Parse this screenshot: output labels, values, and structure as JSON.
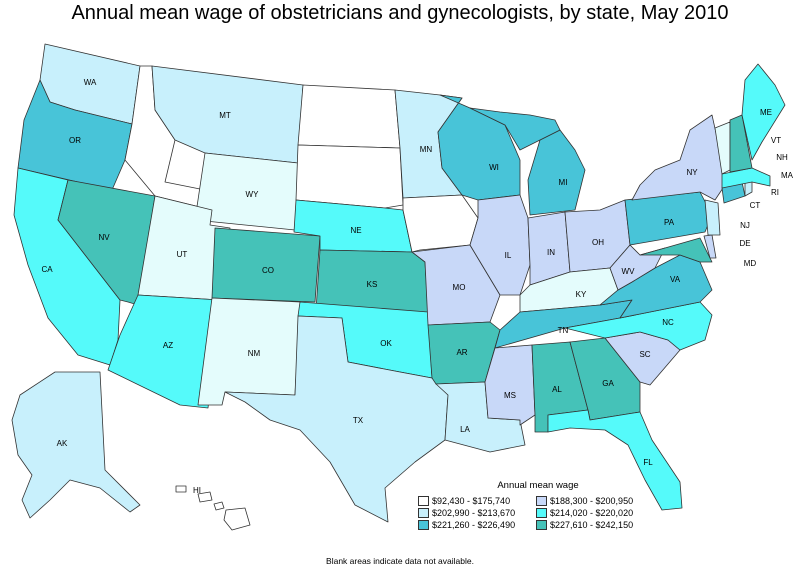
{
  "title": "Annual mean wage of obstetricians and gynecologists, by state, May 2010",
  "legend": {
    "title": "Annual mean wage",
    "items": [
      {
        "label": "$92,430 - $175,740",
        "color": "#ffffff"
      },
      {
        "label": "$188,300 - $200,950",
        "color": "#c8d8f8"
      },
      {
        "label": "$202,990 - $213,670",
        "color": "#c8f0fc"
      },
      {
        "label": "$214,020 - $220,020",
        "color": "#55fafa"
      },
      {
        "label": "$221,260 - $226,490",
        "color": "#48c4d8"
      },
      {
        "label": "$227,610 - $242,150",
        "color": "#45c2b8"
      }
    ]
  },
  "footnote": "Blank areas indicate data not available.",
  "states": {
    "WA": {
      "label": "WA",
      "color": "#c8f0fc"
    },
    "OR": {
      "label": "OR",
      "color": "#48c4d8"
    },
    "CA": {
      "label": "CA",
      "color": "#55fafa"
    },
    "NV": {
      "label": "NV",
      "color": "#45c2b8"
    },
    "ID": {
      "label": "",
      "color": "#ffffff"
    },
    "MT": {
      "label": "MT",
      "color": "#c8f0fc"
    },
    "WY": {
      "label": "WY",
      "color": "#e4fcfc"
    },
    "UT": {
      "label": "UT",
      "color": "#e4fcfc"
    },
    "AZ": {
      "label": "AZ",
      "color": "#55fafa"
    },
    "CO": {
      "label": "CO",
      "color": "#45c2b8"
    },
    "NM": {
      "label": "NM",
      "color": "#e4fcfc"
    },
    "ND": {
      "label": "",
      "color": "#ffffff"
    },
    "SD": {
      "label": "",
      "color": "#ffffff"
    },
    "NE": {
      "label": "NE",
      "color": "#55fafa"
    },
    "KS": {
      "label": "KS",
      "color": "#45c2b8"
    },
    "OK": {
      "label": "OK",
      "color": "#55fafa"
    },
    "TX": {
      "label": "TX",
      "color": "#c8f0fc"
    },
    "MN": {
      "label": "MN",
      "color": "#c8f0fc"
    },
    "IA": {
      "label": "",
      "color": "#ffffff"
    },
    "MO": {
      "label": "MO",
      "color": "#c8d8f8"
    },
    "AR": {
      "label": "AR",
      "color": "#45c2b8"
    },
    "LA": {
      "label": "LA",
      "color": "#c8f0fc"
    },
    "WI": {
      "label": "WI",
      "color": "#48c4d8"
    },
    "IL": {
      "label": "IL",
      "color": "#c8d8f8"
    },
    "MI": {
      "label": "MI",
      "color": "#48c4d8"
    },
    "IN": {
      "label": "IN",
      "color": "#c8d8f8"
    },
    "OH": {
      "label": "OH",
      "color": "#c8d8f8"
    },
    "KY": {
      "label": "KY",
      "color": "#e4fcfc"
    },
    "TN": {
      "label": "TN",
      "color": "#48c4d8"
    },
    "MS": {
      "label": "MS",
      "color": "#c8d8f8"
    },
    "AL": {
      "label": "AL",
      "color": "#45c2b8"
    },
    "GA": {
      "label": "GA",
      "color": "#45c2b8"
    },
    "FL": {
      "label": "FL",
      "color": "#55fafa"
    },
    "SC": {
      "label": "SC",
      "color": "#c8d8f8"
    },
    "NC": {
      "label": "NC",
      "color": "#55fafa"
    },
    "VA": {
      "label": "VA",
      "color": "#48c4d8"
    },
    "WV": {
      "label": "WV",
      "color": "#c8d8f8"
    },
    "PA": {
      "label": "PA",
      "color": "#48c4d8"
    },
    "NY": {
      "label": "NY",
      "color": "#c8d8f8"
    },
    "NJ": {
      "label": "NJ",
      "color": "#c8f0fc"
    },
    "DE": {
      "label": "DE",
      "color": "#c8d8f8"
    },
    "MD": {
      "label": "MD",
      "color": "#45c2b8"
    },
    "CT": {
      "label": "CT",
      "color": "#48c4d8"
    },
    "RI": {
      "label": "RI",
      "color": "#c8f0fc"
    },
    "MA": {
      "label": "MA",
      "color": "#55fafa"
    },
    "VT": {
      "label": "VT",
      "color": "#e4fcfc"
    },
    "NH": {
      "label": "NH",
      "color": "#45c2b8"
    },
    "ME": {
      "label": "ME",
      "color": "#55fafa"
    },
    "AK": {
      "label": "AK",
      "color": "#c8f0fc"
    },
    "HI": {
      "label": "HI",
      "color": "#ffffff"
    }
  }
}
